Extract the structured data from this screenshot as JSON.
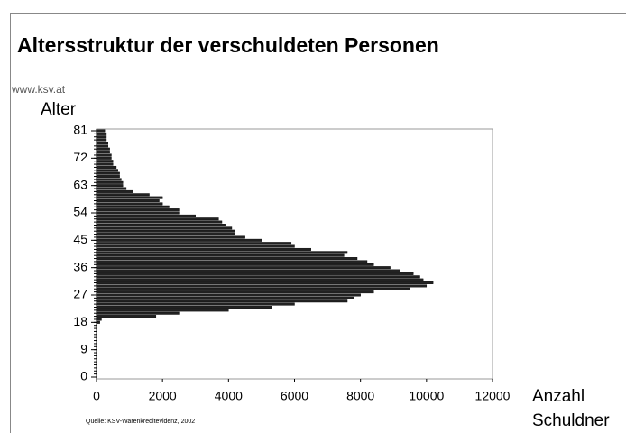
{
  "chart_data": {
    "type": "barh",
    "title": "Altersstruktur der verschuldeten Personen",
    "subtitle": "www.ksv.at",
    "ylabel": "Alter",
    "xlabel": [
      "Anzahl",
      "Schuldner"
    ],
    "source": "Quelle:  KSV-Warenkreditevidenz, 2002",
    "color": "#222222",
    "y": [
      18,
      19,
      20,
      21,
      22,
      23,
      24,
      25,
      26,
      27,
      28,
      29,
      30,
      31,
      32,
      33,
      34,
      35,
      36,
      37,
      38,
      39,
      40,
      41,
      42,
      43,
      44,
      45,
      46,
      47,
      48,
      49,
      50,
      51,
      52,
      53,
      54,
      55,
      56,
      57,
      58,
      59,
      60,
      61,
      62,
      63,
      64,
      65,
      66,
      67,
      68,
      69,
      70,
      71,
      72,
      73,
      74,
      75,
      76,
      77,
      78,
      79,
      80,
      81
    ],
    "values": [
      100,
      150,
      1800,
      2500,
      4000,
      5300,
      6000,
      7600,
      7800,
      8000,
      8400,
      9500,
      10000,
      10200,
      9900,
      9800,
      9600,
      9200,
      8900,
      8400,
      8200,
      7900,
      7500,
      7600,
      6500,
      6000,
      5900,
      5000,
      4500,
      4200,
      4200,
      4100,
      3900,
      3800,
      3700,
      3000,
      2500,
      2500,
      2200,
      2000,
      1900,
      2000,
      1600,
      1100,
      900,
      800,
      800,
      750,
      700,
      700,
      650,
      600,
      500,
      500,
      450,
      450,
      400,
      400,
      350,
      350,
      300,
      300,
      300,
      250
    ],
    "xlim": [
      0,
      12000
    ],
    "xticks": [
      0,
      2000,
      4000,
      6000,
      8000,
      10000,
      12000
    ],
    "ylim": [
      0,
      81
    ],
    "yticks": [
      0,
      9,
      18,
      27,
      36,
      45,
      54,
      63,
      72,
      81
    ]
  }
}
